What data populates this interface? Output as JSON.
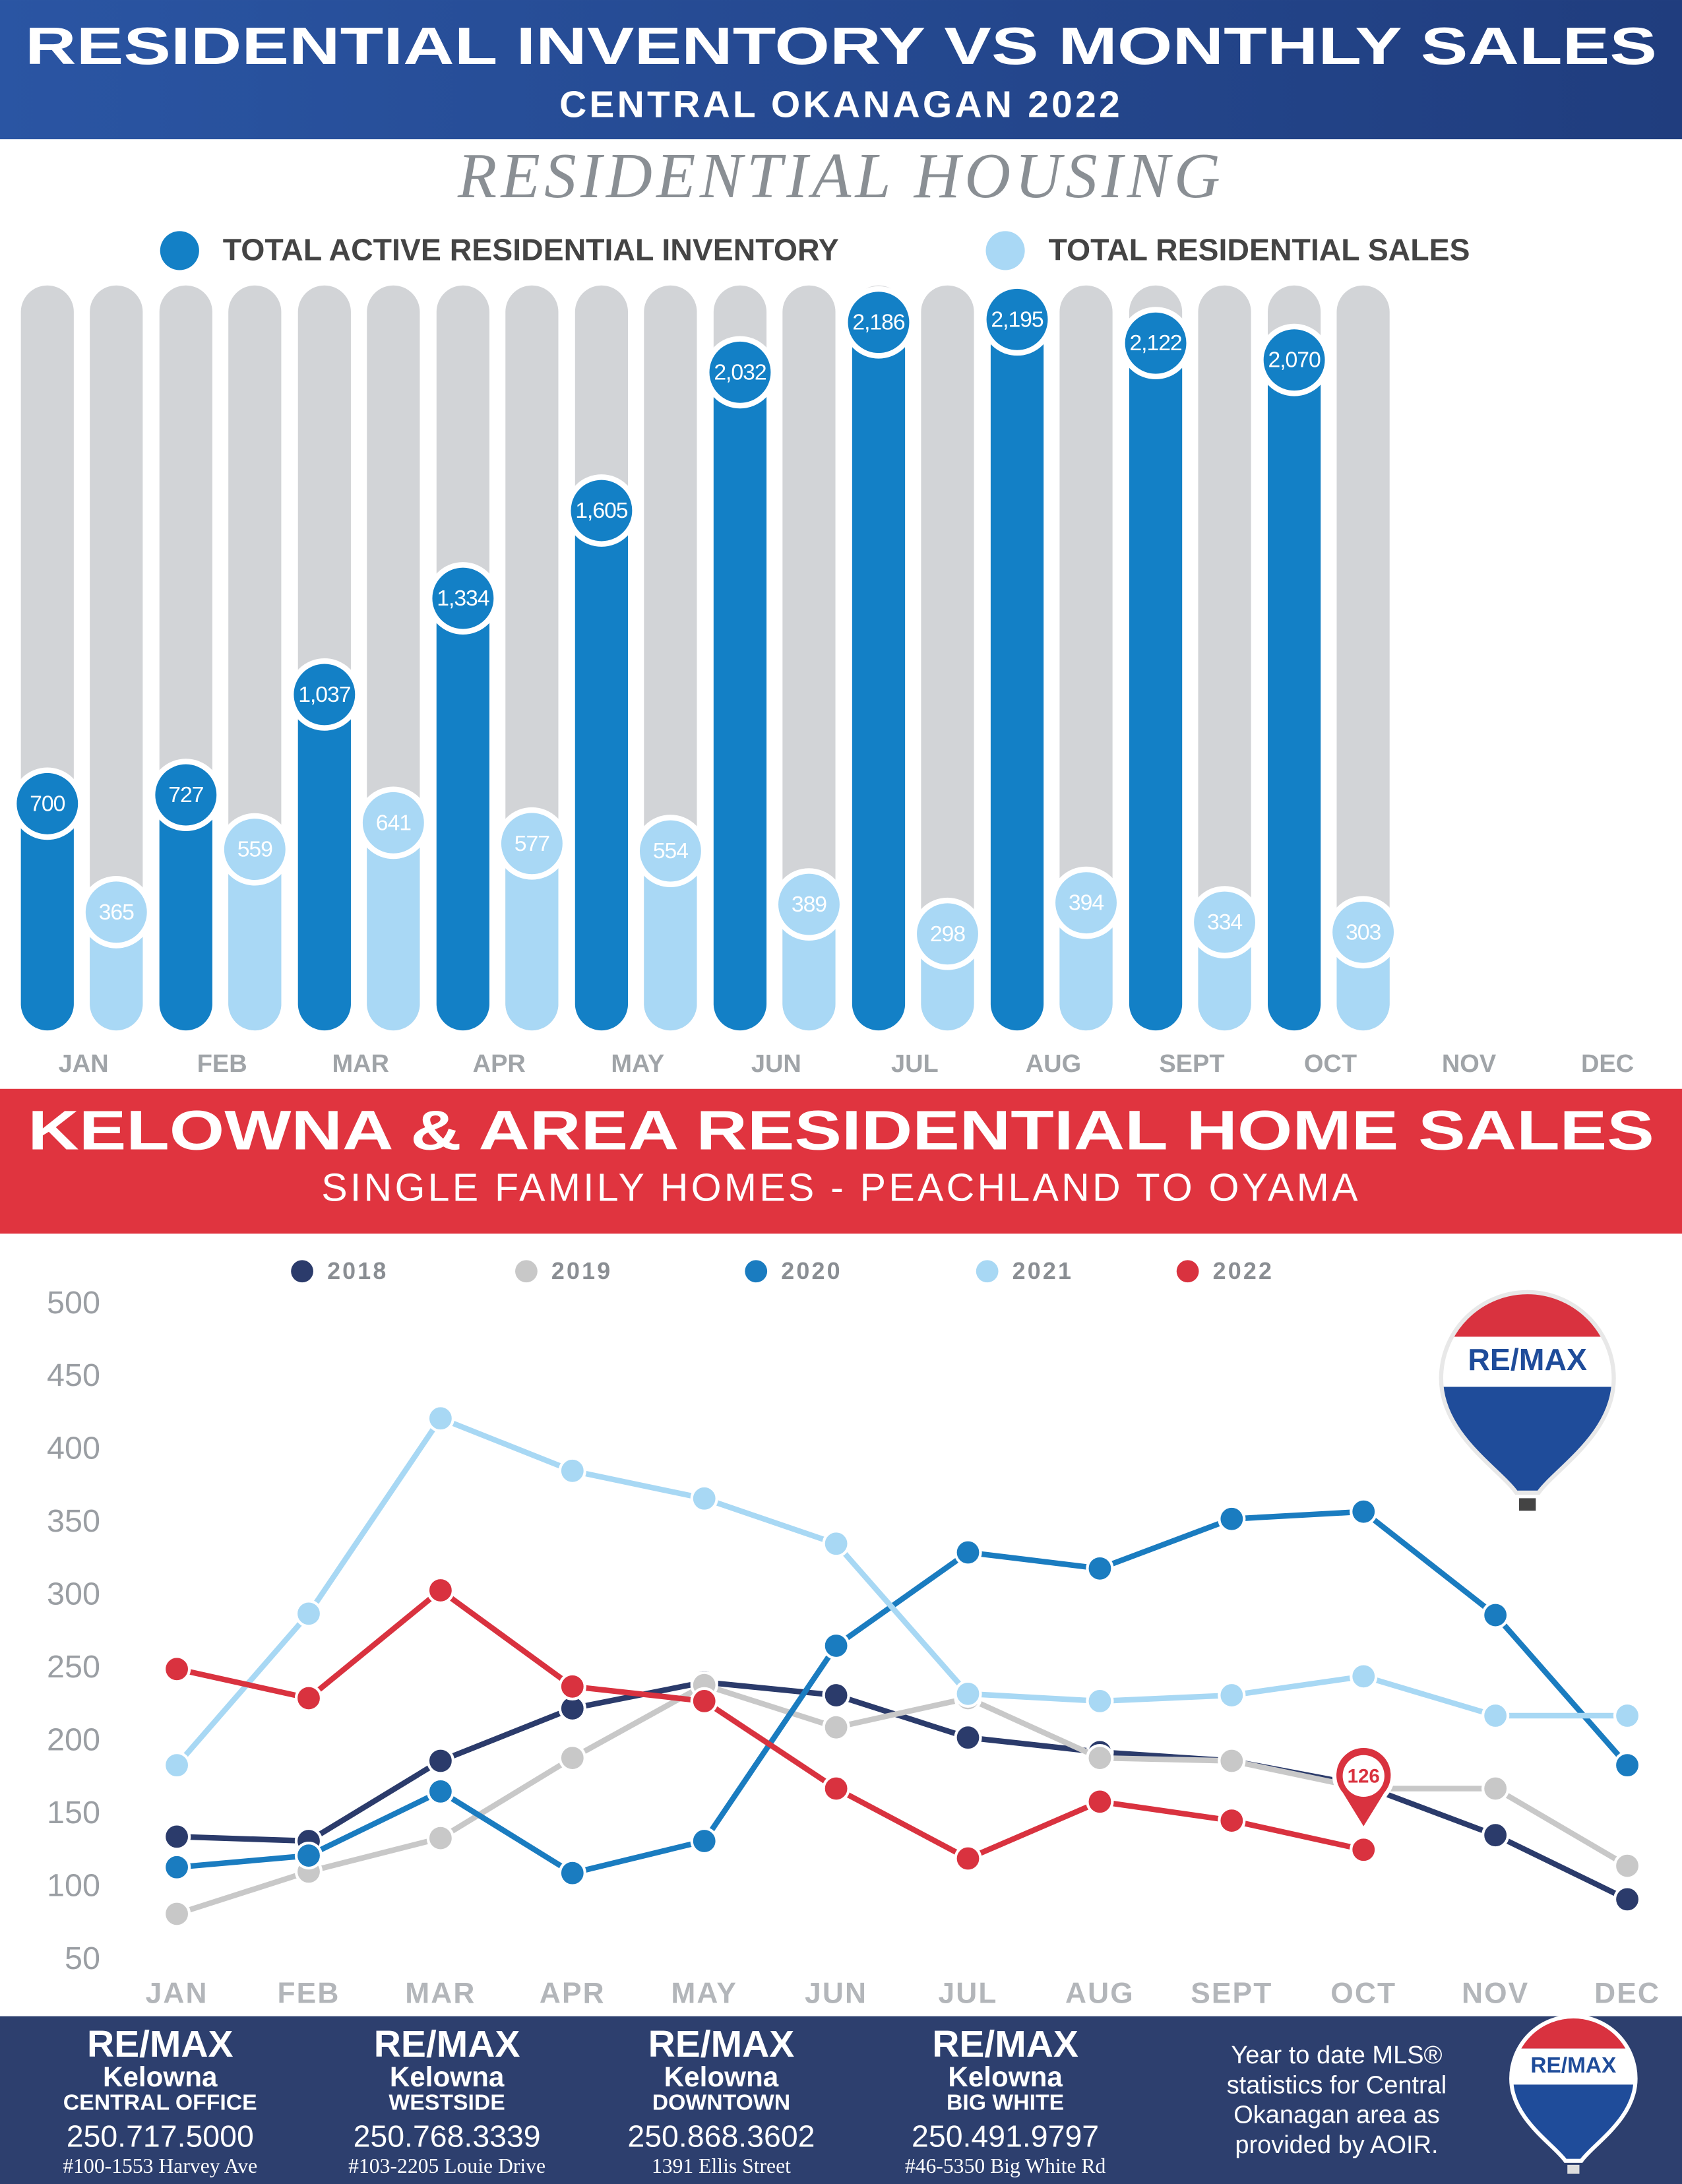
{
  "header": {
    "title": "RESIDENTIAL INVENTORY VS MONTHLY SALES",
    "subtitle": "CENTRAL OKANAGAN 2022"
  },
  "logo": "RE/MAX",
  "chart_data": [
    {
      "type": "bar",
      "title": "RESIDENTIAL HOUSING",
      "categories": [
        "JAN",
        "FEB",
        "MAR",
        "APR",
        "MAY",
        "JUN",
        "JUL",
        "AUG",
        "SEPT",
        "OCT",
        "NOV",
        "DEC"
      ],
      "series": [
        {
          "name": "TOTAL ACTIVE RESIDENTIAL INVENTORY",
          "color": "#1380c6",
          "values": [
            700,
            727,
            1037,
            1334,
            1605,
            2032,
            2186,
            2195,
            2122,
            2070,
            null,
            null
          ],
          "value_labels": [
            "700",
            "727",
            "1,037",
            "1,334",
            "1,605",
            "2,032",
            "2,186",
            "2,195",
            "2,122",
            "2,070",
            null,
            null
          ]
        },
        {
          "name": "TOTAL RESIDENTIAL SALES",
          "color": "#a9d8f5",
          "values": [
            365,
            559,
            641,
            577,
            554,
            389,
            298,
            394,
            334,
            303,
            null,
            null
          ]
        }
      ],
      "ylim": [
        0,
        2300
      ]
    },
    {
      "type": "line",
      "title": "KELOWNA & AREA RESIDENTIAL HOME SALES",
      "subtitle": "SINGLE FAMILY HOMES - PEACHLAND TO OYAMA",
      "categories": [
        "JAN",
        "FEB",
        "MAR",
        "APR",
        "MAY",
        "JUN",
        "JUL",
        "AUG",
        "SEPT",
        "OCT",
        "NOV",
        "DEC"
      ],
      "series": [
        {
          "name": "2018",
          "color": "#2b3b6b",
          "values": [
            135,
            132,
            187,
            223,
            241,
            232,
            203,
            193,
            187,
            170,
            136,
            92
          ]
        },
        {
          "name": "2019",
          "color": "#c8c8c8",
          "values": [
            82,
            111,
            134,
            189,
            239,
            210,
            230,
            189,
            187,
            168,
            168,
            115
          ]
        },
        {
          "name": "2020",
          "color": "#1a7cc0",
          "values": [
            114,
            122,
            166,
            110,
            132,
            266,
            330,
            319,
            353,
            358,
            287,
            184
          ]
        },
        {
          "name": "2021",
          "color": "#a8d8f4",
          "values": [
            184,
            288,
            422,
            386,
            367,
            336,
            233,
            228,
            232,
            245,
            218,
            218
          ]
        },
        {
          "name": "2022",
          "color": "#d9323f",
          "values": [
            250,
            230,
            304,
            238,
            228,
            168,
            120,
            159,
            146,
            126,
            null,
            null
          ]
        }
      ],
      "ylim": [
        50,
        500
      ],
      "yticks": [
        50,
        100,
        150,
        200,
        250,
        300,
        350,
        400,
        450,
        500
      ],
      "grid": false
    }
  ],
  "footer": {
    "offices": [
      {
        "city": "Kelowna",
        "branch": "CENTRAL OFFICE",
        "phone": "250.717.5000",
        "address": "#100-1553 Harvey Ave"
      },
      {
        "city": "Kelowna",
        "branch": "WESTSIDE",
        "phone": "250.768.3339",
        "address": "#103-2205 Louie Drive"
      },
      {
        "city": "Kelowna",
        "branch": "DOWNTOWN",
        "phone": "250.868.3602",
        "address": "1391 Ellis Street"
      },
      {
        "city": "Kelowna",
        "branch": "BIG WHITE",
        "phone": "250.491.9797",
        "address": "#46-5350 Big White Rd"
      }
    ],
    "note": [
      "Year to date MLS®",
      "statistics for Central",
      "Okanagan area as",
      "provided by AOIR."
    ]
  }
}
